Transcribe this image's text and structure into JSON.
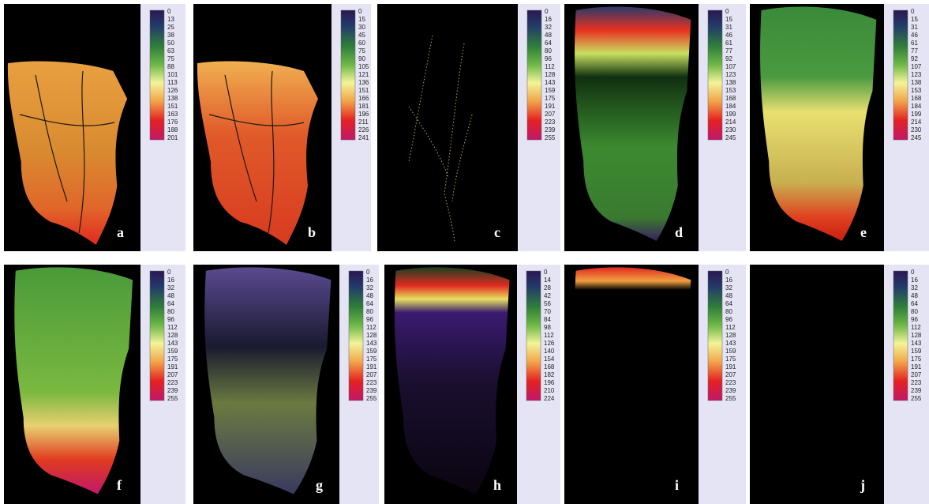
{
  "panels": [
    {
      "label": "a",
      "colorbar_ticks": [
        0,
        13,
        25,
        38,
        50,
        63,
        75,
        88,
        101,
        113,
        126,
        138,
        151,
        163,
        176,
        188,
        201
      ]
    },
    {
      "label": "b",
      "colorbar_ticks": [
        0,
        15,
        30,
        45,
        60,
        75,
        90,
        105,
        121,
        136,
        151,
        166,
        181,
        196,
        211,
        226,
        241
      ]
    },
    {
      "label": "c",
      "colorbar_ticks": [
        0,
        16,
        32,
        48,
        64,
        80,
        96,
        112,
        128,
        143,
        159,
        175,
        191,
        207,
        223,
        239,
        255
      ]
    },
    {
      "label": "d",
      "colorbar_ticks": [
        0,
        15,
        31,
        46,
        61,
        77,
        92,
        107,
        123,
        138,
        153,
        168,
        184,
        199,
        214,
        230,
        245
      ]
    },
    {
      "label": "e",
      "colorbar_ticks": [
        0,
        15,
        31,
        46,
        61,
        77,
        92,
        107,
        123,
        138,
        153,
        168,
        184,
        199,
        214,
        230,
        245
      ]
    },
    {
      "label": "f",
      "colorbar_ticks": [
        0,
        16,
        32,
        48,
        64,
        80,
        96,
        112,
        128,
        143,
        159,
        175,
        191,
        207,
        223,
        239,
        255
      ]
    },
    {
      "label": "g",
      "colorbar_ticks": [
        0,
        16,
        32,
        48,
        64,
        80,
        96,
        112,
        128,
        143,
        159,
        175,
        191,
        207,
        223,
        239,
        255
      ]
    },
    {
      "label": "h",
      "colorbar_ticks": [
        0,
        14,
        28,
        42,
        56,
        70,
        84,
        98,
        112,
        126,
        140,
        154,
        168,
        182,
        196,
        210,
        224
      ]
    },
    {
      "label": "i",
      "colorbar_ticks": [
        0,
        16,
        32,
        48,
        64,
        80,
        96,
        112,
        128,
        143,
        159,
        175,
        191,
        207,
        223,
        239,
        255
      ]
    },
    {
      "label": "j",
      "colorbar_ticks": [
        0,
        16,
        32,
        48,
        64,
        80,
        96,
        112,
        128,
        143,
        159,
        175,
        191,
        207,
        223,
        239,
        255
      ]
    }
  ]
}
